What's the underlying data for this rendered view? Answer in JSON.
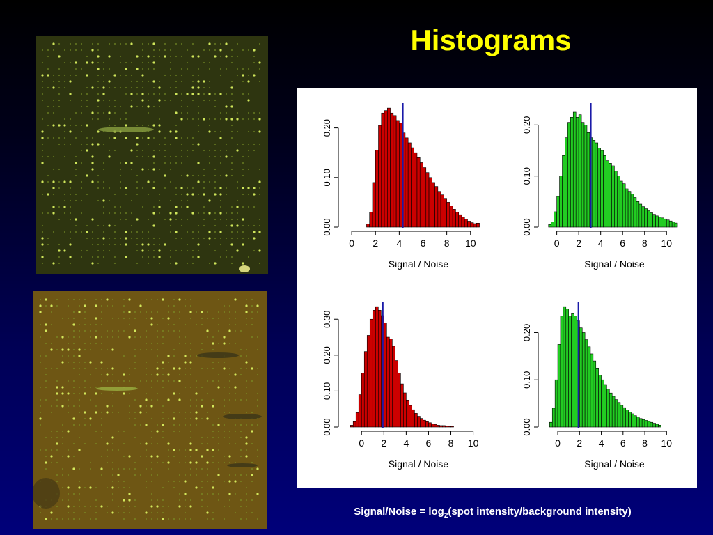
{
  "title": "Histograms",
  "caption": {
    "prefix": "Signal/Noise = log",
    "subscript": "2",
    "suffix": "(spot intensity/background intensity)"
  },
  "images": [
    {
      "name": "microarray-green-scan",
      "tint": "#2e3510"
    },
    {
      "name": "microarray-overlay-scan",
      "tint": "#6e5614"
    }
  ],
  "colors": {
    "red_bars": "#cc0000",
    "green_bars": "#22cc22",
    "median_line": "#1a1aa8",
    "title": "#ffff00"
  },
  "chart_data": [
    {
      "type": "bar",
      "position": "top-left",
      "xlabel": "Signal / Noise",
      "ylabel": "",
      "bin_width": 0.25,
      "xlim": [
        -0.3,
        10.6
      ],
      "ylim": [
        0,
        0.2
      ],
      "x_ticks": [
        "0",
        "2",
        "4",
        "6",
        "8",
        "10"
      ],
      "y_ticks": [
        "0.00",
        "0.10",
        "0.20"
      ],
      "bar_color": "red",
      "median": 4.3,
      "bins_start": 1.25,
      "values": [
        0.006,
        0.03,
        0.09,
        0.155,
        0.205,
        0.23,
        0.235,
        0.24,
        0.23,
        0.225,
        0.215,
        0.21,
        0.19,
        0.18,
        0.17,
        0.16,
        0.15,
        0.14,
        0.13,
        0.12,
        0.11,
        0.1,
        0.09,
        0.082,
        0.072,
        0.065,
        0.058,
        0.05,
        0.043,
        0.036,
        0.03,
        0.025,
        0.02,
        0.016,
        0.012,
        0.009,
        0.007,
        0.008
      ]
    },
    {
      "type": "bar",
      "position": "top-right",
      "xlabel": "Signal / Noise",
      "ylabel": "",
      "bin_width": 0.25,
      "xlim": [
        -0.8,
        10.3
      ],
      "ylim": [
        0,
        0.2
      ],
      "x_ticks": [
        "0",
        "2",
        "4",
        "6",
        "8",
        "10"
      ],
      "y_ticks": [
        "0.00",
        "0.10",
        "0.20"
      ],
      "bar_color": "green",
      "median": 3.1,
      "bins_start": -0.75,
      "values": [
        0.005,
        0.01,
        0.03,
        0.06,
        0.1,
        0.14,
        0.175,
        0.205,
        0.215,
        0.225,
        0.215,
        0.22,
        0.205,
        0.2,
        0.185,
        0.175,
        0.17,
        0.165,
        0.155,
        0.15,
        0.14,
        0.13,
        0.125,
        0.12,
        0.11,
        0.1,
        0.09,
        0.085,
        0.075,
        0.07,
        0.065,
        0.058,
        0.05,
        0.045,
        0.04,
        0.036,
        0.032,
        0.028,
        0.025,
        0.022,
        0.02,
        0.018,
        0.016,
        0.014,
        0.012,
        0.01,
        0.008
      ]
    },
    {
      "type": "bar",
      "position": "bottom-left",
      "xlabel": "Signal / Noise",
      "ylabel": "",
      "bin_width": 0.25,
      "xlim": [
        -1.2,
        10.4
      ],
      "ylim": [
        0,
        0.3
      ],
      "x_ticks": [
        "0",
        "2",
        "4",
        "6",
        "8",
        "10"
      ],
      "y_ticks": [
        "0.00",
        "0.10",
        "0.20",
        "0.30"
      ],
      "bar_color": "red",
      "median": 1.9,
      "bins_start": -1.0,
      "values": [
        0.005,
        0.015,
        0.04,
        0.09,
        0.15,
        0.21,
        0.255,
        0.3,
        0.325,
        0.335,
        0.325,
        0.31,
        0.29,
        0.25,
        0.245,
        0.225,
        0.185,
        0.15,
        0.12,
        0.095,
        0.075,
        0.06,
        0.048,
        0.038,
        0.03,
        0.024,
        0.019,
        0.015,
        0.012,
        0.009,
        0.007,
        0.005,
        0.004,
        0.004,
        0.003,
        0.002,
        0.002
      ]
    },
    {
      "type": "bar",
      "position": "bottom-right",
      "xlabel": "Signal / Noise",
      "ylabel": "",
      "bin_width": 0.25,
      "xlim": [
        -0.9,
        10.3
      ],
      "ylim": [
        0,
        0.2
      ],
      "x_ticks": [
        "0",
        "2",
        "4",
        "6",
        "8",
        "10"
      ],
      "y_ticks": [
        "0.00",
        "0.10",
        "0.20"
      ],
      "bar_color": "green",
      "median": 1.9,
      "bins_start": -0.75,
      "values": [
        0.01,
        0.04,
        0.1,
        0.175,
        0.235,
        0.255,
        0.25,
        0.235,
        0.24,
        0.235,
        0.225,
        0.21,
        0.2,
        0.185,
        0.17,
        0.155,
        0.14,
        0.125,
        0.11,
        0.1,
        0.09,
        0.08,
        0.072,
        0.065,
        0.058,
        0.052,
        0.046,
        0.041,
        0.036,
        0.032,
        0.028,
        0.024,
        0.021,
        0.018,
        0.016,
        0.014,
        0.012,
        0.01,
        0.008,
        0.006,
        0.004
      ]
    }
  ]
}
